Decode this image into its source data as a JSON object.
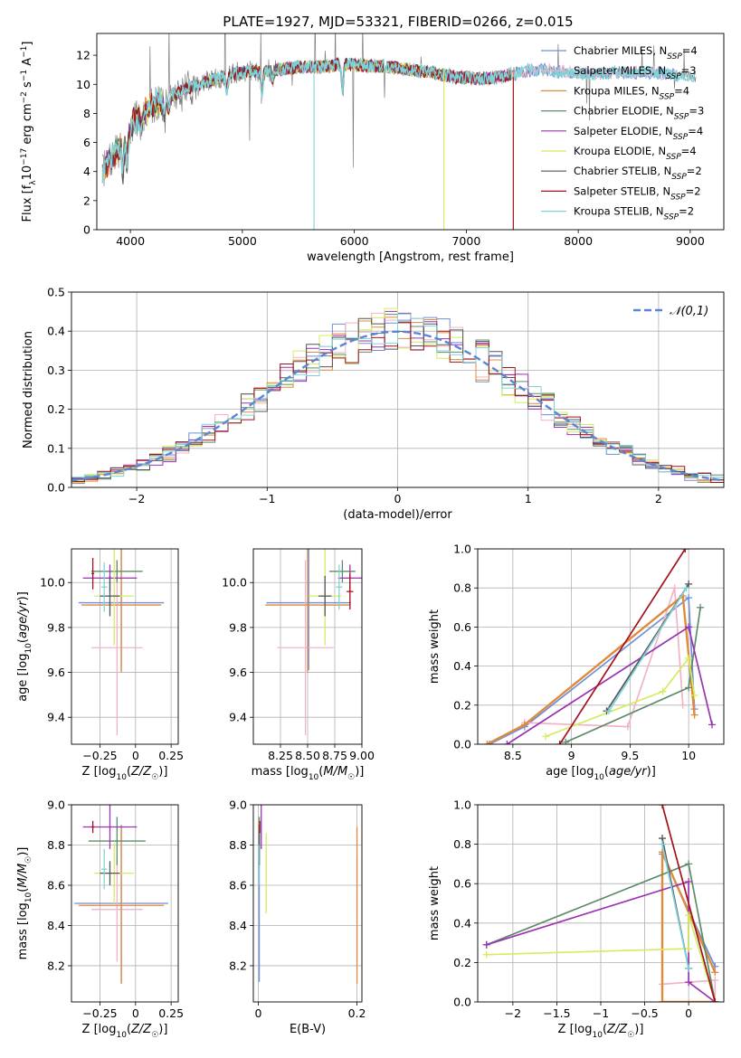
{
  "figure": {
    "title": "PLATE=1927, MJD=53321, FIBERID=0266, z=0.015"
  },
  "models": [
    {
      "name": "Chabrier MILES",
      "nssp": "4",
      "color": "#6f8fd8"
    },
    {
      "name": "Salpeter MILES",
      "nssp": "3",
      "color": "#f2b3c8"
    },
    {
      "name": "Kroupa MILES",
      "nssp": "4",
      "color": "#e08a3c"
    },
    {
      "name": "Chabrier ELODIE",
      "nssp": "3",
      "color": "#5e8c6a"
    },
    {
      "name": "Salpeter ELODIE",
      "nssp": "4",
      "color": "#9b33b0"
    },
    {
      "name": "Kroupa ELODIE",
      "nssp": "4",
      "color": "#d4ec5e"
    },
    {
      "name": "Chabrier STELIB",
      "nssp": "2",
      "color": "#555555"
    },
    {
      "name": "Salpeter STELIB",
      "nssp": "2",
      "color": "#a3121a"
    },
    {
      "name": "Kroupa STELIB",
      "nssp": "2",
      "color": "#7fd3d8"
    }
  ],
  "chart_data": [
    {
      "id": "spectrum",
      "type": "line",
      "title": "PLATE=1927, MJD=53321, FIBERID=0266, z=0.015",
      "xlabel": "wavelength [Angstrom, rest frame]",
      "ylabel": "Flux [f_λ 10^-17 erg cm^-2 s^-1 A^-1]",
      "xlim": [
        3700,
        9300
      ],
      "ylim": [
        0,
        13.5
      ],
      "xticks": [
        4000,
        5000,
        6000,
        7000,
        8000,
        9000
      ],
      "yticks": [
        0,
        2,
        4,
        6,
        8,
        10,
        12
      ],
      "continuum": {
        "x": [
          3750,
          3850,
          3950,
          4050,
          4200,
          4350,
          4500,
          4700,
          4900,
          5100,
          5300,
          5500,
          5700,
          5900,
          6100,
          6300,
          6500,
          6700,
          6900,
          7100,
          7300,
          7500,
          7700,
          7900,
          8100,
          8300,
          8500,
          8700,
          8900,
          9050
        ],
        "y": [
          4.0,
          5.0,
          6.2,
          7.6,
          8.6,
          9.1,
          9.7,
          10.2,
          10.7,
          10.9,
          11.0,
          11.2,
          11.2,
          11.4,
          11.3,
          11.2,
          11.0,
          10.8,
          10.5,
          10.4,
          10.5,
          10.9,
          11.0,
          10.8,
          10.7,
          10.8,
          10.8,
          10.8,
          10.6,
          10.5
        ]
      },
      "data_range": [
        3750,
        9050
      ],
      "model_ranges": [
        [
          3750,
          8900
        ],
        [
          3750,
          8900
        ],
        [
          3750,
          7420
        ],
        [
          3750,
          6800
        ],
        [
          3750,
          7420
        ],
        [
          3750,
          6800
        ],
        [
          3750,
          7420
        ],
        [
          3750,
          7420
        ],
        [
          3750,
          9050
        ]
      ],
      "grid": false,
      "legend": "top-right"
    },
    {
      "id": "residuals",
      "type": "histogram",
      "xlabel": "(data-model)/error",
      "ylabel": "Normed distribution",
      "xlim": [
        -2.5,
        2.5
      ],
      "ylim": [
        0,
        0.5
      ],
      "xticks": [
        -2,
        -1,
        0,
        1,
        2
      ],
      "yticks": [
        0.0,
        0.1,
        0.2,
        0.3,
        0.4,
        0.5
      ],
      "reference": {
        "name": "𝒩(0,1)",
        "mean": 0,
        "sigma": 1
      },
      "grid": true,
      "legend": "top-right"
    },
    {
      "id": "age-vs-Z",
      "type": "errorbar",
      "xlabel": "Z [log10(Z/Z☉)]",
      "ylabel": "age [log10(age/yr)]",
      "xlim": [
        -0.45,
        0.3
      ],
      "ylim": [
        9.28,
        10.15
      ],
      "xticks": [
        -0.25,
        0.0,
        0.25
      ],
      "yticks": [
        9.4,
        9.6,
        9.8,
        10.0
      ],
      "points": [
        {
          "x": -0.1,
          "xerr": 0.3,
          "y": 9.91,
          "yerr": 0.3
        },
        {
          "x": -0.13,
          "xerr": 0.18,
          "y": 9.71,
          "yerr": 0.39
        },
        {
          "x": -0.1,
          "xerr": 0.28,
          "y": 9.9,
          "yerr": 0.3
        },
        {
          "x": -0.13,
          "xerr": 0.18,
          "y": 10.05,
          "yerr": 0.05
        },
        {
          "x": -0.18,
          "xerr": 0.19,
          "y": 10.02,
          "yerr": 0.06
        },
        {
          "x": -0.15,
          "xerr": 0.14,
          "y": 9.94,
          "yerr": 0.22
        },
        {
          "x": -0.18,
          "xerr": 0.07,
          "y": 9.94,
          "yerr": 0.09
        },
        {
          "x": -0.3,
          "xerr": 0.01,
          "y": 10.04,
          "yerr": 0.07
        },
        {
          "x": -0.22,
          "xerr": 0.02,
          "y": 9.98,
          "yerr": 0.11
        }
      ]
    },
    {
      "id": "age-vs-mass",
      "type": "errorbar",
      "xlabel": "mass [log10(M/M☉)]",
      "xlim": [
        8.0,
        9.0
      ],
      "ylim": [
        9.28,
        10.15
      ],
      "xticks": [
        8.25,
        8.5,
        8.75,
        9.0
      ],
      "xticklabels": [
        "8.25",
        "8.50",
        "8.75",
        "9.00"
      ],
      "yticks": [
        9.4,
        9.6,
        9.8,
        10.0
      ],
      "points": [
        {
          "x": 8.51,
          "xerr": 0.39,
          "y": 9.91,
          "yerr": 0.3
        },
        {
          "x": 8.48,
          "xerr": 0.26,
          "y": 9.71,
          "yerr": 0.39
        },
        {
          "x": 8.5,
          "xerr": 0.39,
          "y": 9.9,
          "yerr": 0.3
        },
        {
          "x": 8.82,
          "xerr": 0.12,
          "y": 10.05,
          "yerr": 0.05
        },
        {
          "x": 8.89,
          "xerr": 0.11,
          "y": 10.02,
          "yerr": 0.06
        },
        {
          "x": 8.66,
          "xerr": 0.15,
          "y": 9.94,
          "yerr": 0.22
        },
        {
          "x": 8.66,
          "xerr": 0.06,
          "y": 9.94,
          "yerr": 0.09
        },
        {
          "x": 8.89,
          "xerr": 0.03,
          "y": 9.96,
          "yerr": 0.08
        },
        {
          "x": 8.79,
          "xerr": 0.03,
          "y": 9.98,
          "yerr": 0.1
        }
      ]
    },
    {
      "id": "weight-vs-age",
      "type": "line",
      "xlabel": "age [log10(age/yr)]",
      "ylabel": "mass weight",
      "xlim": [
        8.2,
        10.3
      ],
      "ylim": [
        0,
        1
      ],
      "xticks": [
        8.5,
        9.0,
        9.5,
        10.0
      ],
      "yticks": [
        0.0,
        0.2,
        0.4,
        0.6,
        0.8,
        1.0
      ],
      "series": [
        {
          "x": [
            8.3,
            8.6,
            10.0,
            10.05
          ],
          "y": [
            0.0,
            0.09,
            0.75,
            0.18
          ]
        },
        {
          "x": [
            8.6,
            9.48,
            9.88,
            9.95
          ],
          "y": [
            0.11,
            0.09,
            0.8,
            0.2
          ]
        },
        {
          "x": [
            8.28,
            8.6,
            9.95,
            10.05
          ],
          "y": [
            0.0,
            0.1,
            0.76,
            0.15
          ]
        },
        {
          "x": [
            8.95,
            10.0,
            10.1
          ],
          "y": [
            0.01,
            0.29,
            0.7
          ]
        },
        {
          "x": [
            8.45,
            10.0,
            10.2
          ],
          "y": [
            0.0,
            0.6,
            0.1
          ]
        },
        {
          "x": [
            8.78,
            9.78,
            10.0,
            10.05
          ],
          "y": [
            0.04,
            0.27,
            0.44,
            0.25
          ]
        },
        {
          "x": [
            9.3,
            10.0
          ],
          "y": [
            0.17,
            0.82
          ]
        },
        {
          "x": [
            8.9,
            9.97
          ],
          "y": [
            0.0,
            1.0
          ]
        },
        {
          "x": [
            9.32,
            9.98
          ],
          "y": [
            0.17,
            0.8
          ]
        }
      ]
    },
    {
      "id": "mass-vs-Z",
      "type": "errorbar",
      "xlabel": "Z [log10(Z/Z☉)]",
      "ylabel": "mass [log10(M/M☉)]",
      "xlim": [
        -0.45,
        0.3
      ],
      "ylim": [
        8.02,
        9.0
      ],
      "xticks": [
        -0.25,
        0.0,
        0.25
      ],
      "yticks": [
        8.2,
        8.4,
        8.6,
        8.8,
        9.0
      ],
      "points": [
        {
          "x": -0.1,
          "xerr": 0.33,
          "y": 8.51,
          "yerr": 0.39
        },
        {
          "x": -0.13,
          "xerr": 0.18,
          "y": 8.48,
          "yerr": 0.26
        },
        {
          "x": -0.1,
          "xerr": 0.3,
          "y": 8.5,
          "yerr": 0.39
        },
        {
          "x": -0.13,
          "xerr": 0.2,
          "y": 8.82,
          "yerr": 0.12
        },
        {
          "x": -0.18,
          "xerr": 0.19,
          "y": 8.89,
          "yerr": 0.11
        },
        {
          "x": -0.15,
          "xerr": 0.14,
          "y": 8.66,
          "yerr": 0.15
        },
        {
          "x": -0.18,
          "xerr": 0.07,
          "y": 8.66,
          "yerr": 0.06
        },
        {
          "x": -0.3,
          "xerr": 0.01,
          "y": 8.89,
          "yerr": 0.03
        },
        {
          "x": -0.22,
          "xerr": 0.02,
          "y": 8.68,
          "yerr": 0.1
        }
      ]
    },
    {
      "id": "mass-vs-ebv",
      "type": "errorbar",
      "xlabel": "E(B-V)",
      "xlim": [
        -0.01,
        0.21
      ],
      "ylim": [
        8.02,
        9.0
      ],
      "xticks": [
        0.0,
        0.2
      ],
      "yticks": [
        8.2,
        8.4,
        8.6,
        8.8,
        9.0
      ],
      "points": [
        {
          "x": 0.002,
          "y": 8.51,
          "yerr": 0.39
        },
        {
          "x": 0.2,
          "y": 8.48,
          "yerr": 0.26
        },
        {
          "x": 0.2,
          "y": 8.5,
          "yerr": 0.39
        },
        {
          "x": 0.002,
          "y": 8.82,
          "yerr": 0.12
        },
        {
          "x": 0.006,
          "y": 8.89,
          "yerr": 0.11
        },
        {
          "x": 0.016,
          "y": 8.66,
          "yerr": 0.2
        },
        {
          "x": 0.002,
          "y": 8.8,
          "yerr": 0.1
        },
        {
          "x": 0.003,
          "y": 8.89,
          "yerr": 0.03
        },
        {
          "x": 0.001,
          "y": 8.7,
          "yerr": 0.1
        }
      ]
    },
    {
      "id": "weight-vs-Z",
      "type": "line",
      "xlabel": "Z [log10(Z/Z☉)]",
      "ylabel": "mass weight",
      "xlim": [
        -2.4,
        0.4
      ],
      "ylim": [
        0,
        1
      ],
      "xticks": [
        -2.0,
        -1.5,
        -1.0,
        -0.5,
        0.0
      ],
      "yticks": [
        0.0,
        0.2,
        0.4,
        0.6,
        0.8,
        1.0
      ],
      "series": [
        {
          "x": [
            0.3,
            -0.3,
            -0.3,
            0.3
          ],
          "y": [
            0.18,
            0.75,
            0.0,
            0.0
          ]
        },
        {
          "x": [
            -0.3,
            0.3,
            0.3
          ],
          "y": [
            0.09,
            0.11,
            0.0
          ]
        },
        {
          "x": [
            0.3,
            -0.3,
            -0.3,
            0.3
          ],
          "y": [
            0.15,
            0.76,
            0.0,
            0.0
          ]
        },
        {
          "x": [
            -2.3,
            0.0,
            0.3
          ],
          "y": [
            0.29,
            0.7,
            0.0
          ]
        },
        {
          "x": [
            -2.3,
            0.0,
            0.0,
            0.3
          ],
          "y": [
            0.29,
            0.61,
            0.1,
            0.0
          ]
        },
        {
          "x": [
            -2.3,
            0.0,
            0.0,
            0.3
          ],
          "y": [
            0.24,
            0.27,
            0.44,
            0.0
          ]
        },
        {
          "x": [
            -0.3,
            0.0
          ],
          "y": [
            0.83,
            0.17
          ]
        },
        {
          "x": [
            -0.3,
            0.3
          ],
          "y": [
            1.0,
            0.0
          ]
        },
        {
          "x": [
            -0.3,
            0.0
          ],
          "y": [
            0.8,
            0.17
          ]
        }
      ]
    }
  ]
}
